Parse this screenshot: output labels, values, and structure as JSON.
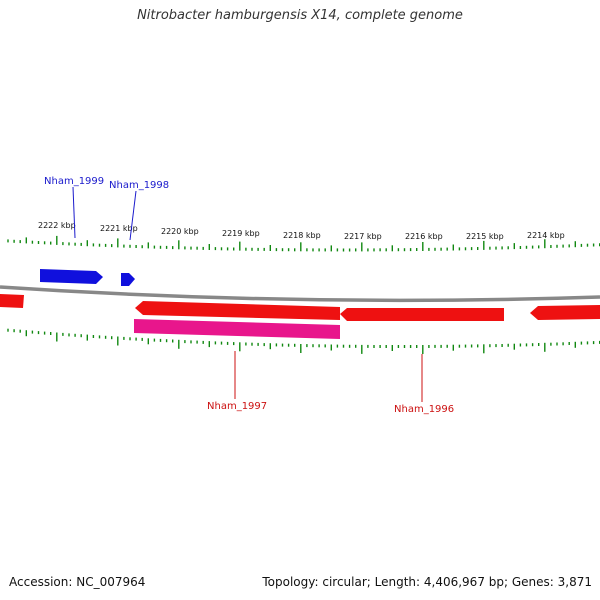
{
  "title": "Nitrobacter hamburgensis X14, complete genome",
  "footer": {
    "accession": "Accession: NC_007964",
    "summary": "Topology: circular; Length: 4,406,967 bp; Genes: 3,871"
  },
  "colors": {
    "forward_gene": "#1010dd",
    "reverse_gene": "#ee1111",
    "highlighted_gene": "#e8168c",
    "backbone": "#888888",
    "ticks": "#118811",
    "forward_label": "#1a1acc",
    "reverse_label": "#cc1111"
  },
  "tick_labels": [
    "2222 kbp",
    "2221 kbp",
    "2220 kbp",
    "2219 kbp",
    "2218 kbp",
    "2217 kbp",
    "2216 kbp",
    "2215 kbp",
    "2214 kbp"
  ],
  "gene_labels": {
    "forward": [
      "Nham_1999",
      "Nham_1998"
    ],
    "reverse": [
      "Nham_1997",
      "Nham_1996"
    ]
  }
}
